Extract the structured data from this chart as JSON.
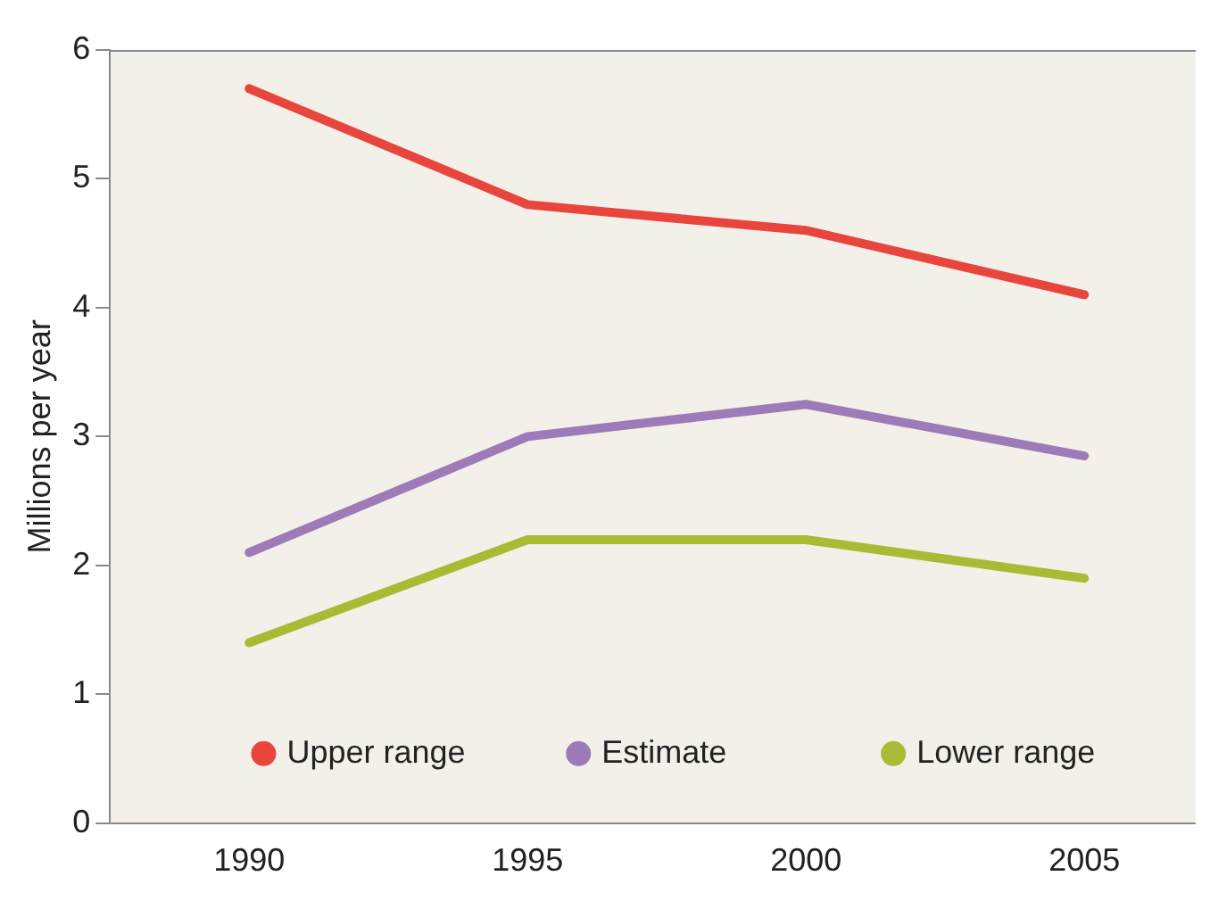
{
  "chart_data": {
    "type": "line",
    "ylabel": "Millions per year",
    "x": [
      1990,
      1995,
      2000,
      2005
    ],
    "series": [
      {
        "name": "Upper range",
        "color": "#e8453c",
        "values": [
          5.7,
          4.8,
          4.6,
          4.1
        ]
      },
      {
        "name": "Estimate",
        "color": "#9c7bb8",
        "values": [
          2.1,
          3.0,
          3.25,
          2.85
        ]
      },
      {
        "name": "Lower range",
        "color": "#a8bb34",
        "values": [
          1.4,
          2.2,
          2.2,
          1.9
        ]
      }
    ],
    "xlim": [
      1987.5,
      2007
    ],
    "xticks": [
      1990,
      1995,
      2000,
      2005
    ],
    "ylim": [
      0,
      6
    ],
    "yticks": [
      0,
      1,
      2,
      3,
      4,
      5,
      6
    ],
    "grid": false,
    "legend": "bottom",
    "marker": "none",
    "line_style": "solid"
  }
}
